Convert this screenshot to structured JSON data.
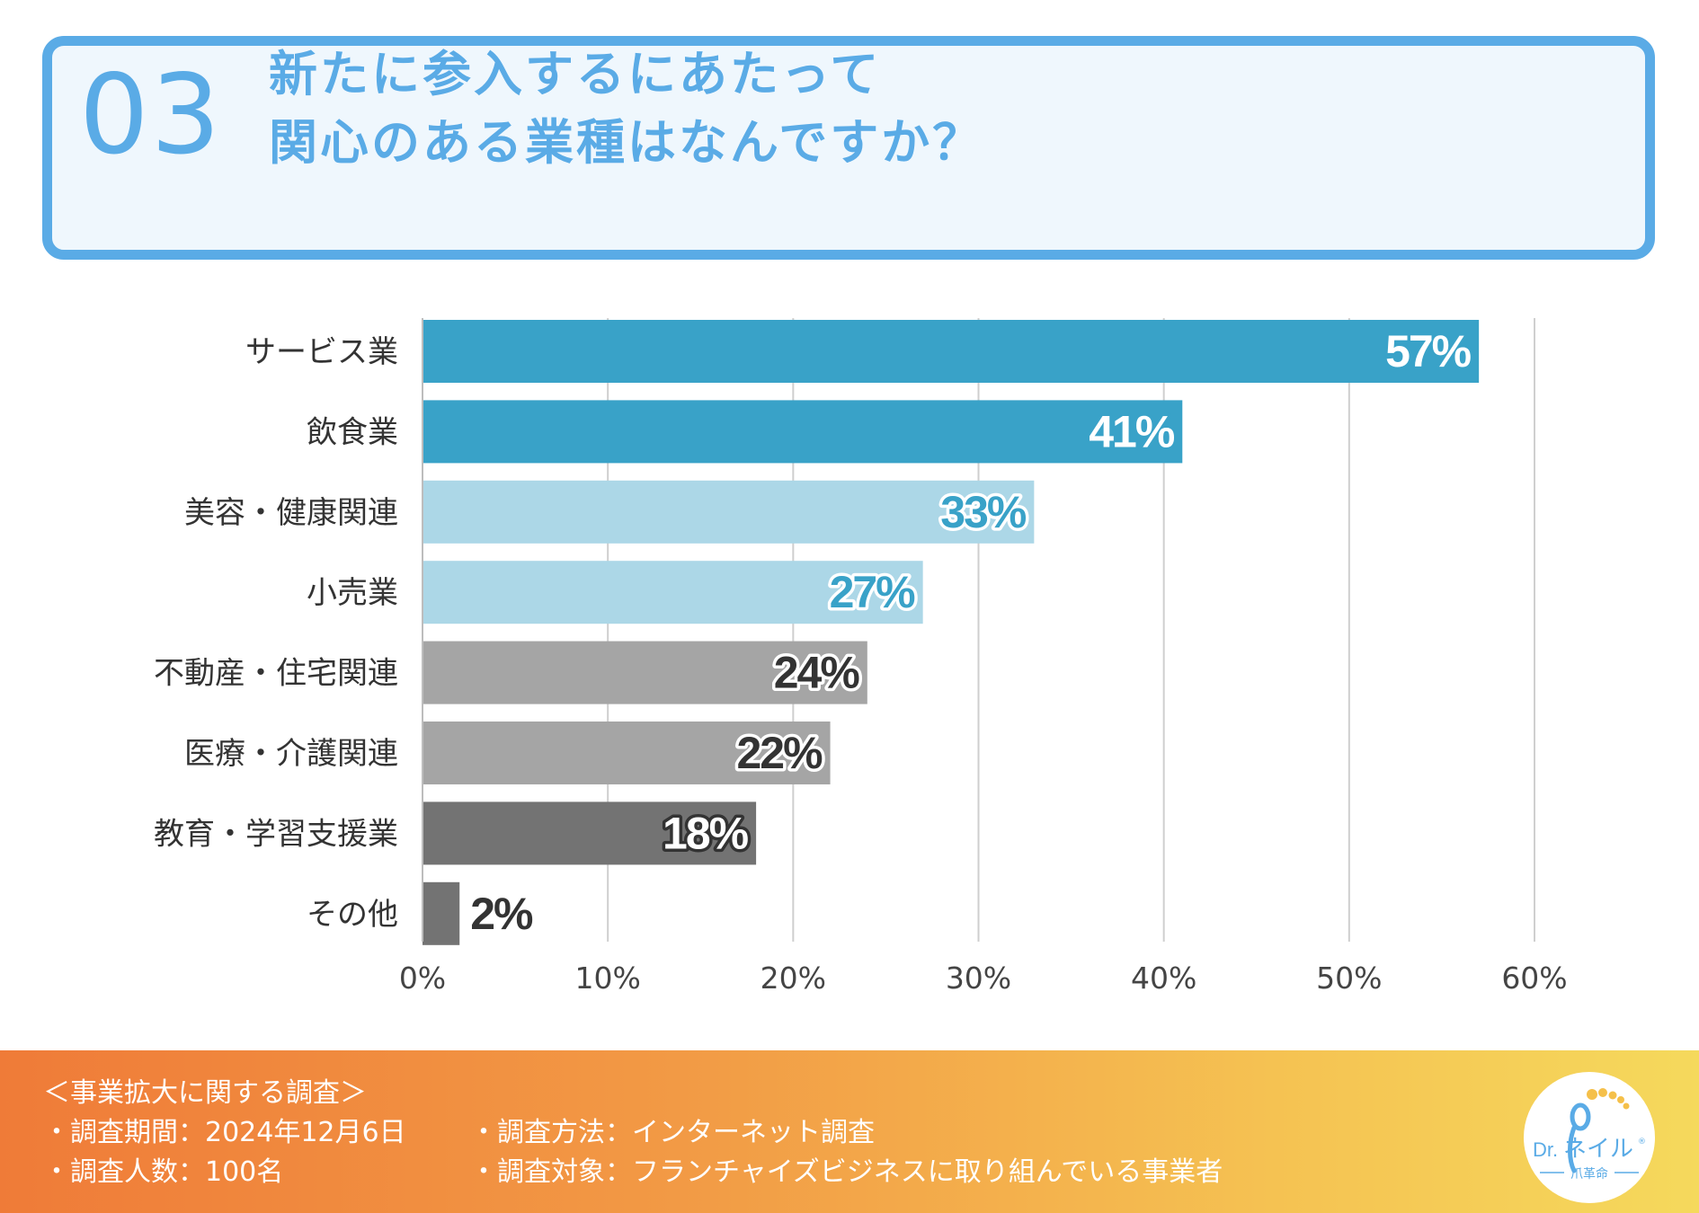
{
  "header": {
    "number": "03",
    "title_line1": "新たに参入するにあたって",
    "title_line2": "関心のある業種はなんですか？"
  },
  "colors": {
    "accent": "#5aabe6",
    "bar_dark_blue": "#39a2c8",
    "bar_light_blue": "#acd7e7",
    "bar_gray": "#a5a5a5",
    "bar_dark_gray": "#737373"
  },
  "chart_data": {
    "type": "bar",
    "orientation": "horizontal",
    "categories": [
      "サービス業",
      "飲食業",
      "美容・健康関連",
      "小売業",
      "不動産・住宅関連",
      "医療・介護関連",
      "教育・学習支援業",
      "その他"
    ],
    "values": [
      57,
      41,
      33,
      27,
      24,
      22,
      18,
      2
    ],
    "value_labels": [
      "57%",
      "41%",
      "33%",
      "27%",
      "24%",
      "22%",
      "18%",
      "2%"
    ],
    "bar_colors": [
      "#39a2c8",
      "#39a2c8",
      "#acd7e7",
      "#acd7e7",
      "#a5a5a5",
      "#a5a5a5",
      "#737373",
      "#737373"
    ],
    "label_fill": [
      "#ffffff",
      "#ffffff",
      "#39a2c8",
      "#39a2c8",
      "#333333",
      "#333333",
      "#ffffff",
      "#333333"
    ],
    "label_stroke": [
      "#39a2c8",
      "#39a2c8",
      "#ffffff",
      "#ffffff",
      "#ffffff",
      "#ffffff",
      "#333333",
      "none"
    ],
    "xlim": [
      0,
      60
    ],
    "xticks": [
      0,
      10,
      20,
      30,
      40,
      50,
      60
    ],
    "xtick_labels": [
      "0%",
      "10%",
      "20%",
      "30%",
      "40%",
      "50%",
      "60%"
    ],
    "grid": true,
    "title": "",
    "xlabel": "",
    "ylabel": ""
  },
  "footer": {
    "survey_title": "＜事業拡大に関する調査＞",
    "period": "・調査期間：2024年12月6日",
    "count": "・調査人数：100名",
    "method": "・調査方法：インターネット調査",
    "target": "・調査対象：フランチャイズビジネスに取り組んでいる事業者"
  },
  "logo": {
    "brand_prefix": "Dr.",
    "brand_name": "ネイル",
    "tagline": "爪革命",
    "registered": "®"
  }
}
